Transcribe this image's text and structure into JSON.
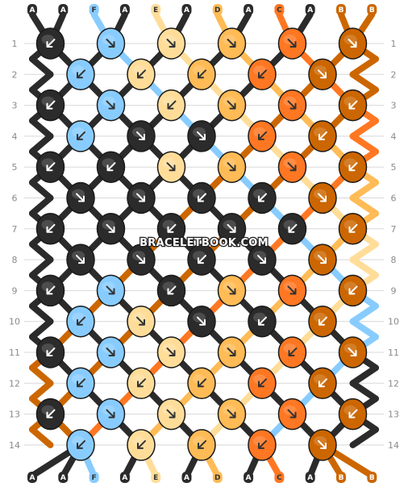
{
  "watermark": "BRACELETBOOK.COM",
  "colors": {
    "A": "#2b2b2b",
    "F": "#88ccff",
    "E": "#ffdd99",
    "D": "#ffbb55",
    "C": "#ff7722",
    "B": "#cc6600"
  },
  "strings_top": [
    "A",
    "A",
    "F",
    "A",
    "E",
    "A",
    "D",
    "A",
    "C",
    "A",
    "B",
    "B"
  ],
  "strings_bottom": [
    "A",
    "A",
    "F",
    "A",
    "E",
    "A",
    "D",
    "A",
    "C",
    "A",
    "B",
    "B"
  ],
  "row_labels": [
    "1",
    "2",
    "3",
    "4",
    "5",
    "6",
    "7",
    "8",
    "9",
    "10",
    "11",
    "12",
    "13",
    "14"
  ],
  "knot_rows": [
    [
      {
        "c": "A",
        "d": "fl"
      },
      {
        "c": "F",
        "d": "fr"
      },
      {
        "c": "E",
        "d": "fr"
      },
      {
        "c": "D",
        "d": "fr"
      },
      {
        "c": "C",
        "d": "fr"
      },
      {
        "c": "B",
        "d": "fr"
      }
    ],
    [
      {
        "c": "F",
        "d": "fl"
      },
      {
        "c": "E",
        "d": "fl"
      },
      {
        "c": "D",
        "d": "fl"
      },
      {
        "c": "C",
        "d": "fl"
      },
      {
        "c": "B",
        "d": "fr"
      }
    ],
    [
      {
        "c": "A",
        "d": "fl"
      },
      {
        "c": "F",
        "d": "fr"
      },
      {
        "c": "E",
        "d": "fl"
      },
      {
        "c": "D",
        "d": "fr"
      },
      {
        "c": "C",
        "d": "fr"
      },
      {
        "c": "B",
        "d": "fl"
      }
    ],
    [
      {
        "c": "F",
        "d": "fl"
      },
      {
        "c": "A",
        "d": "fr"
      },
      {
        "c": "A",
        "d": "fr"
      },
      {
        "c": "C",
        "d": "fl"
      },
      {
        "c": "B",
        "d": "fl"
      }
    ],
    [
      {
        "c": "A",
        "d": "fl"
      },
      {
        "c": "A",
        "d": "fl"
      },
      {
        "c": "E",
        "d": "fr"
      },
      {
        "c": "D",
        "d": "fr"
      },
      {
        "c": "C",
        "d": "fr"
      },
      {
        "c": "B",
        "d": "fl"
      }
    ],
    [
      {
        "c": "A",
        "d": "fr"
      },
      {
        "c": "A",
        "d": "fr"
      },
      {
        "c": "A",
        "d": "fl"
      },
      {
        "c": "A",
        "d": "fl"
      },
      {
        "c": "B",
        "d": "fr"
      }
    ],
    [
      {
        "c": "A",
        "d": "fl"
      },
      {
        "c": "A",
        "d": "fr"
      },
      {
        "c": "A",
        "d": "fl"
      },
      {
        "c": "A",
        "d": "fr"
      },
      {
        "c": "A",
        "d": "fl"
      },
      {
        "c": "B",
        "d": "fl"
      }
    ],
    [
      {
        "c": "A",
        "d": "fr"
      },
      {
        "c": "A",
        "d": "fr"
      },
      {
        "c": "A",
        "d": "fl"
      },
      {
        "c": "A",
        "d": "fr"
      },
      {
        "c": "B",
        "d": "fr"
      }
    ],
    [
      {
        "c": "A",
        "d": "fl"
      },
      {
        "c": "F",
        "d": "fr"
      },
      {
        "c": "A",
        "d": "fl"
      },
      {
        "c": "D",
        "d": "fr"
      },
      {
        "c": "C",
        "d": "fr"
      },
      {
        "c": "B",
        "d": "fl"
      }
    ],
    [
      {
        "c": "F",
        "d": "fl"
      },
      {
        "c": "E",
        "d": "fr"
      },
      {
        "c": "A",
        "d": "fr"
      },
      {
        "c": "A",
        "d": "fl"
      },
      {
        "c": "B",
        "d": "fl"
      }
    ],
    [
      {
        "c": "A",
        "d": "fl"
      },
      {
        "c": "F",
        "d": "fr"
      },
      {
        "c": "E",
        "d": "fr"
      },
      {
        "c": "D",
        "d": "fr"
      },
      {
        "c": "C",
        "d": "fl"
      },
      {
        "c": "B",
        "d": "fr"
      }
    ],
    [
      {
        "c": "F",
        "d": "fl"
      },
      {
        "c": "E",
        "d": "fl"
      },
      {
        "c": "D",
        "d": "fl"
      },
      {
        "c": "C",
        "d": "fl"
      },
      {
        "c": "B",
        "d": "fl"
      }
    ],
    [
      {
        "c": "A",
        "d": "fl"
      },
      {
        "c": "F",
        "d": "fr"
      },
      {
        "c": "E",
        "d": "fr"
      },
      {
        "c": "D",
        "d": "fr"
      },
      {
        "c": "C",
        "d": "fr"
      },
      {
        "c": "B",
        "d": "fl"
      }
    ],
    [
      {
        "c": "F",
        "d": "fl"
      },
      {
        "c": "E",
        "d": "fl"
      },
      {
        "c": "D",
        "d": "fl"
      },
      {
        "c": "C",
        "d": "fl"
      },
      {
        "c": "B",
        "d": "fr"
      }
    ]
  ]
}
